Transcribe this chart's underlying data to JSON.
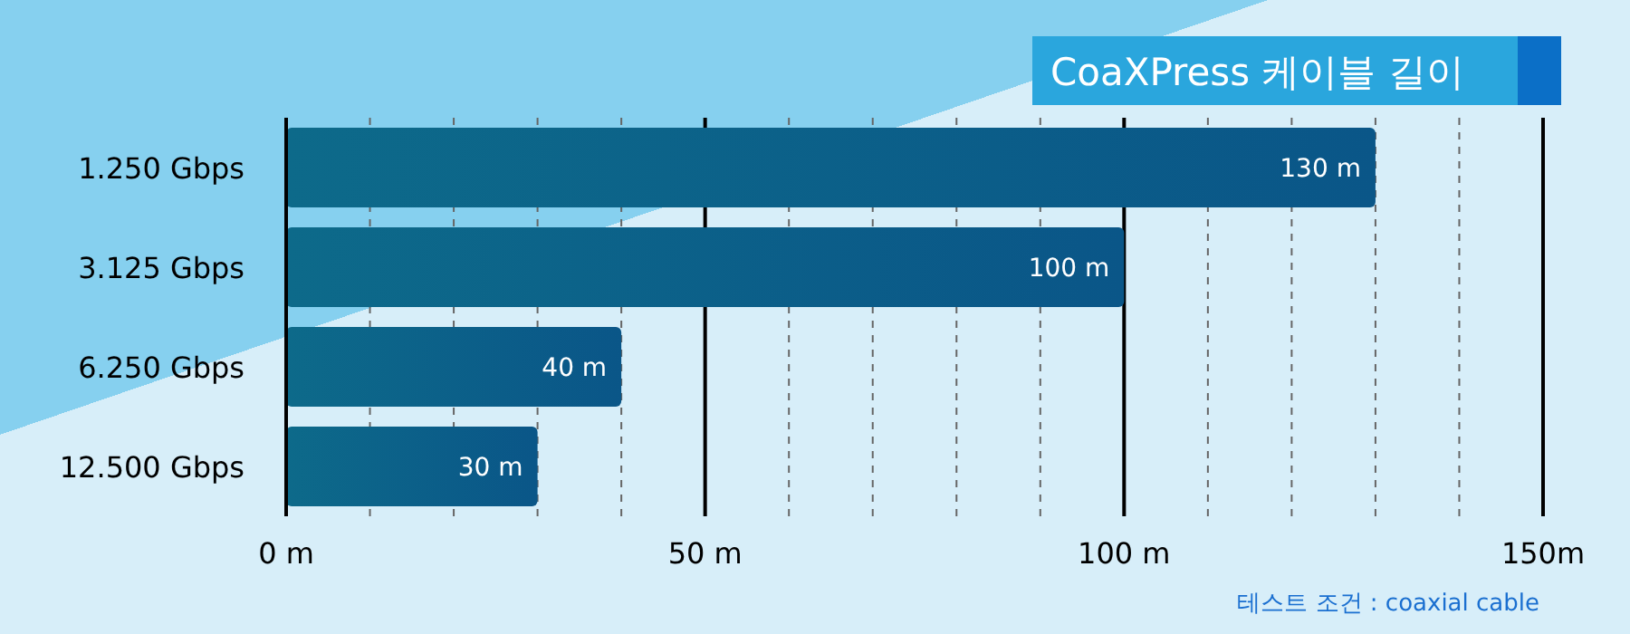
{
  "chart_data": {
    "type": "bar",
    "orientation": "horizontal",
    "title": "CoaXPress 케이블 길이",
    "categories": [
      "1.250 Gbps",
      "3.125 Gbps",
      "6.250 Gbps",
      "12.500 Gbps"
    ],
    "values": [
      130,
      100,
      40,
      30
    ],
    "value_labels": [
      "130 m",
      "100 m",
      "40 m",
      "30 m"
    ],
    "color": "#0a5688",
    "xlim": [
      0,
      150
    ],
    "xticks": [
      {
        "value": 0,
        "label": "0 m"
      },
      {
        "value": 10,
        "label": null
      },
      {
        "value": 20,
        "label": null
      },
      {
        "value": 30,
        "label": null
      },
      {
        "value": 40,
        "label": null
      },
      {
        "value": 50,
        "label": "50 m"
      },
      {
        "value": 60,
        "label": null
      },
      {
        "value": 70,
        "label": null
      },
      {
        "value": 80,
        "label": null
      },
      {
        "value": 90,
        "label": null
      },
      {
        "value": 100,
        "label": "100 m"
      },
      {
        "value": 110,
        "label": null
      },
      {
        "value": 120,
        "label": null
      },
      {
        "value": 130,
        "label": null
      },
      {
        "value": 140,
        "label": null
      },
      {
        "value": 150,
        "label": "150m"
      }
    ],
    "grid": "x",
    "annotations": [
      "테스트 조건 : coaxial cable"
    ]
  }
}
